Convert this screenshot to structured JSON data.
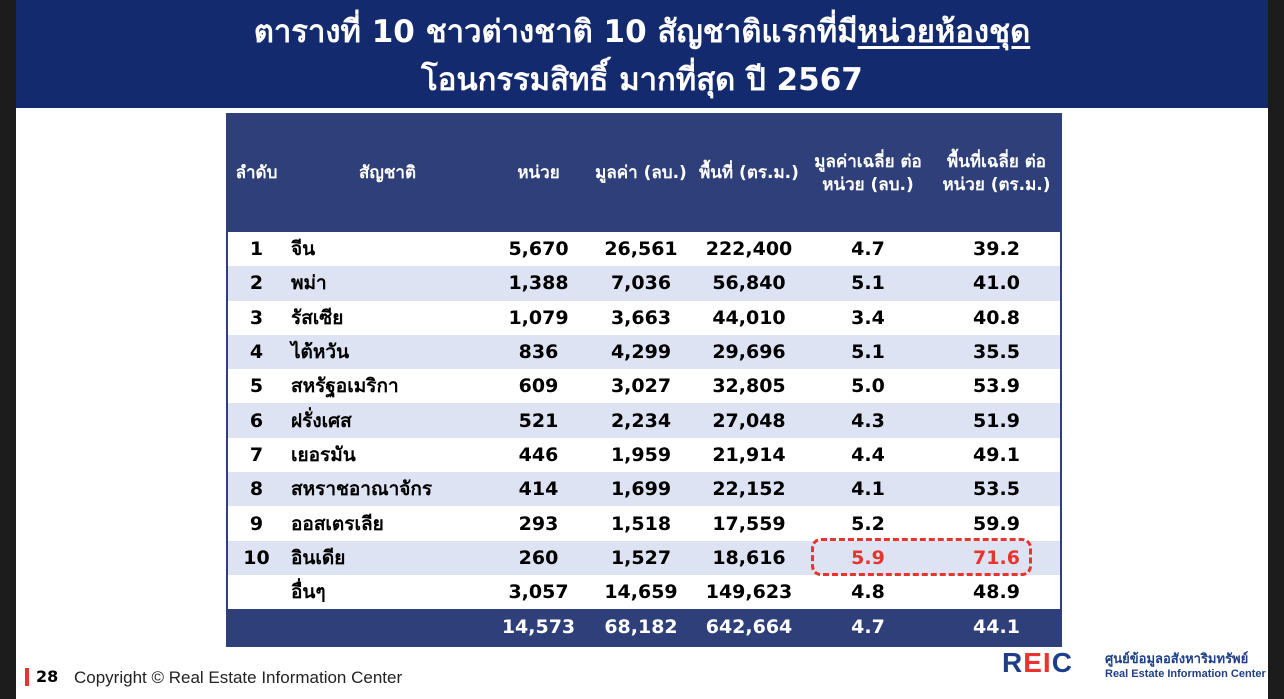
{
  "title": {
    "line1_prefix": "ตารางที่ 10 ชาวต่างชาติ 10 สัญชาติแรกที่มี",
    "line1_underlined": "หน่วยห้องชุด",
    "line2": "โอนกรรมสิทธิ์ มากที่สุด ปี 2567"
  },
  "table": {
    "headers": [
      "ลำดับ",
      "สัญชาติ",
      "หน่วย",
      "มูลค่า (ลบ.)",
      "พื้นที่ (ตร.ม.)",
      "มูลค่าเฉลี่ย ต่อหน่วย (ลบ.)",
      "พื้นที่เฉลี่ย ต่อหน่วย (ตร.ม.)"
    ],
    "rows": [
      {
        "rank": "1",
        "nation": "จีน",
        "units": "5,670",
        "value": "26,561",
        "area": "222,400",
        "avg_value": "4.7",
        "avg_area": "39.2"
      },
      {
        "rank": "2",
        "nation": "พม่า",
        "units": "1,388",
        "value": "7,036",
        "area": "56,840",
        "avg_value": "5.1",
        "avg_area": "41.0"
      },
      {
        "rank": "3",
        "nation": "รัสเซีย",
        "units": "1,079",
        "value": "3,663",
        "area": "44,010",
        "avg_value": "3.4",
        "avg_area": "40.8"
      },
      {
        "rank": "4",
        "nation": "ไต้หวัน",
        "units": "836",
        "value": "4,299",
        "area": "29,696",
        "avg_value": "5.1",
        "avg_area": "35.5"
      },
      {
        "rank": "5",
        "nation": "สหรัฐอเมริกา",
        "units": "609",
        "value": "3,027",
        "area": "32,805",
        "avg_value": "5.0",
        "avg_area": "53.9"
      },
      {
        "rank": "6",
        "nation": "ฝรั่งเศส",
        "units": "521",
        "value": "2,234",
        "area": "27,048",
        "avg_value": "4.3",
        "avg_area": "51.9"
      },
      {
        "rank": "7",
        "nation": "เยอรมัน",
        "units": "446",
        "value": "1,959",
        "area": "21,914",
        "avg_value": "4.4",
        "avg_area": "49.1"
      },
      {
        "rank": "8",
        "nation": "สหราชอาณาจักร",
        "units": "414",
        "value": "1,699",
        "area": "22,152",
        "avg_value": "4.1",
        "avg_area": "53.5"
      },
      {
        "rank": "9",
        "nation": "ออสเตรเลีย",
        "units": "293",
        "value": "1,518",
        "area": "17,559",
        "avg_value": "5.2",
        "avg_area": "59.9"
      },
      {
        "rank": "10",
        "nation": "อินเดีย",
        "units": "260",
        "value": "1,527",
        "area": "18,616",
        "avg_value": "5.9",
        "avg_area": "71.6"
      },
      {
        "rank": "",
        "nation": "อื่นๆ",
        "units": "3,057",
        "value": "14,659",
        "area": "149,623",
        "avg_value": "4.8",
        "avg_area": "48.9"
      }
    ],
    "total": {
      "units": "14,573",
      "value": "68,182",
      "area": "642,664",
      "avg_value": "4.7",
      "avg_area": "44.1"
    }
  },
  "footer": {
    "page_number": "28",
    "copyright": "Copyright © Real Estate Information Center"
  },
  "logo": {
    "abbr_r": "R",
    "abbr_ei": "EI",
    "abbr_c": "C",
    "thai_name": "ศูนย์ข้อมูลอสังหาริมทรัพย์",
    "english_name": "Real Estate Information Center"
  },
  "colors": {
    "header_blue": "#132a6e",
    "table_blue": "#2e3f7a",
    "stripe": "#dde3f2",
    "highlight_red": "#e8342c"
  }
}
